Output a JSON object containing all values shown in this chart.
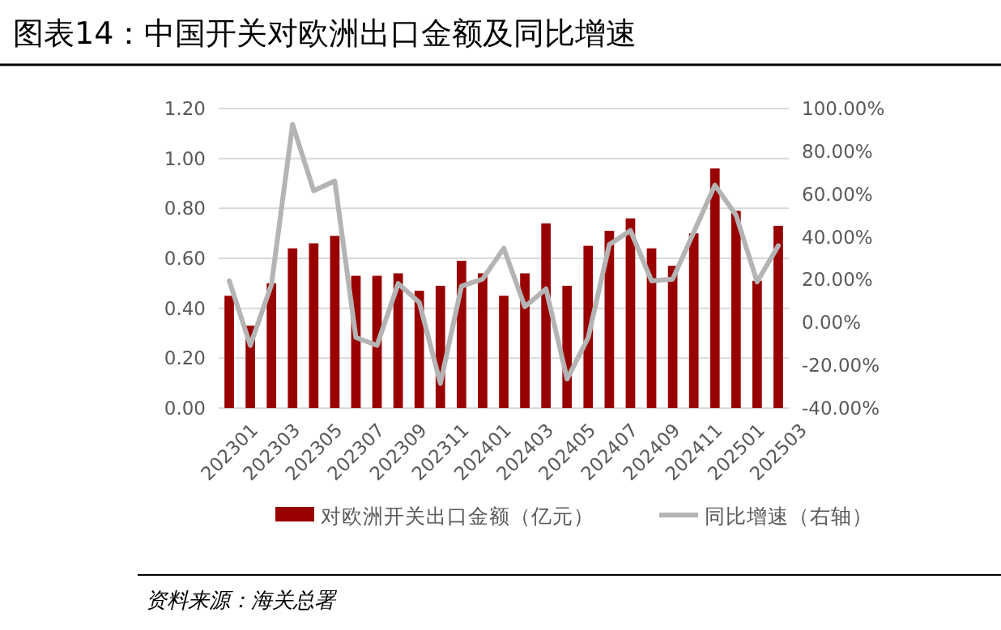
{
  "chart_data": {
    "type": "bar",
    "title": "图表14：中国开关对欧洲出口金额及同比增速",
    "categories": [
      "202301",
      null,
      "202303",
      null,
      "202305",
      null,
      "202307",
      null,
      "202309",
      null,
      "202311",
      null,
      "202401",
      null,
      "202403",
      null,
      "202405",
      null,
      "202407",
      null,
      "202409",
      null,
      "202411",
      null,
      "202501",
      null,
      "202503"
    ],
    "series": [
      {
        "name": "对欧洲开关出口金额（亿元）",
        "color": "#990000",
        "values": [
          0.45,
          0.33,
          0.5,
          0.64,
          0.66,
          0.69,
          0.53,
          0.53,
          0.54,
          0.47,
          0.49,
          0.59,
          0.54,
          0.45,
          0.54,
          0.74,
          0.49,
          0.65,
          0.71,
          0.76,
          0.64,
          0.57,
          0.7,
          0.96,
          0.79,
          0.51,
          0.73
        ]
      },
      {
        "name": "同比增速（右轴）",
        "type": "line",
        "axis": "y2",
        "color": "#b4b4b4",
        "values": [
          19.5,
          -10.7,
          17.7,
          92.6,
          61.6,
          66.1,
          -7,
          -10.7,
          18.2,
          9.4,
          -28.5,
          17,
          20.3,
          34.7,
          7.4,
          15.7,
          -26.4,
          -7,
          36.4,
          43,
          19.5,
          20.3,
          42.2,
          64.2,
          50.2,
          19,
          35.9
        ]
      }
    ],
    "ylim": [
      0,
      1.2
    ],
    "yticks": [
      {
        "value": 0,
        "label": "0.00"
      },
      {
        "value": 0.2,
        "label": "0.20"
      },
      {
        "value": 0.4,
        "label": "0.40"
      },
      {
        "value": 0.6,
        "label": "0.60"
      },
      {
        "value": 0.8,
        "label": "0.80"
      },
      {
        "value": 1.0,
        "label": "1.00"
      },
      {
        "value": 1.2,
        "label": "1.20"
      }
    ],
    "y2lim": [
      -40,
      100
    ],
    "y2ticks": [
      {
        "value": -40,
        "label": "-40.00%"
      },
      {
        "value": -20,
        "label": "-20.00%"
      },
      {
        "value": 0,
        "label": "0.00%"
      },
      {
        "value": 20,
        "label": "20.00%"
      },
      {
        "value": 40,
        "label": "40.00%"
      },
      {
        "value": 60,
        "label": "60.00%"
      },
      {
        "value": 80,
        "label": "80.00%"
      },
      {
        "value": 100,
        "label": "100.00%"
      }
    ],
    "grid": "y",
    "legend": "bottom",
    "marker": "none",
    "line_style": "solid",
    "annotations": [
      "资料来源：海关总署"
    ]
  }
}
